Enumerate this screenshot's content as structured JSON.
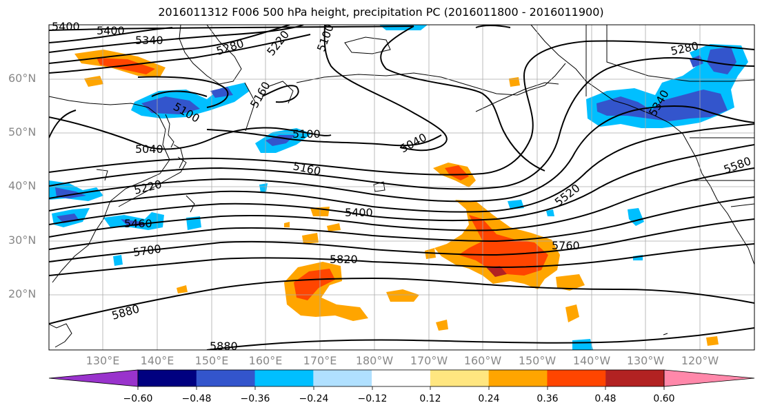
{
  "title": "2016011312 F006 500 hPa height, precipitation PC (2016011800 - 2016011900)",
  "lat_labels": [
    "60°N",
    "50°N",
    "40°N",
    "30°N",
    "20°N"
  ],
  "lon_labels": [
    "130°E",
    "140°E",
    "150°E",
    "160°E",
    "170°E",
    "180°W",
    "170°W",
    "160°W",
    "150°W",
    "140°W",
    "130°W",
    "120°W"
  ],
  "contour_labels": [
    "5400",
    "5340",
    "5280",
    "5220",
    "5100",
    "5160",
    "5100",
    "5040",
    "5100",
    "5040",
    "5160",
    "5220",
    "5400",
    "5460",
    "5520",
    "5580",
    "5700",
    "5760",
    "5820",
    "5880",
    "5880",
    "5280",
    "5340"
  ],
  "colorbar": {
    "ticks": [
      "−0.60",
      "−0.48",
      "−0.36",
      "−0.24",
      "−0.12",
      "0.12",
      "0.24",
      "0.36",
      "0.48",
      "0.60"
    ],
    "colors": [
      "#9933cc",
      "#000080",
      "#3355cc",
      "#00bfff",
      "#b0e0ff",
      "#ffffff",
      "#ffe680",
      "#ffa500",
      "#ff4500",
      "#b22222",
      "#ff88aa"
    ]
  }
}
